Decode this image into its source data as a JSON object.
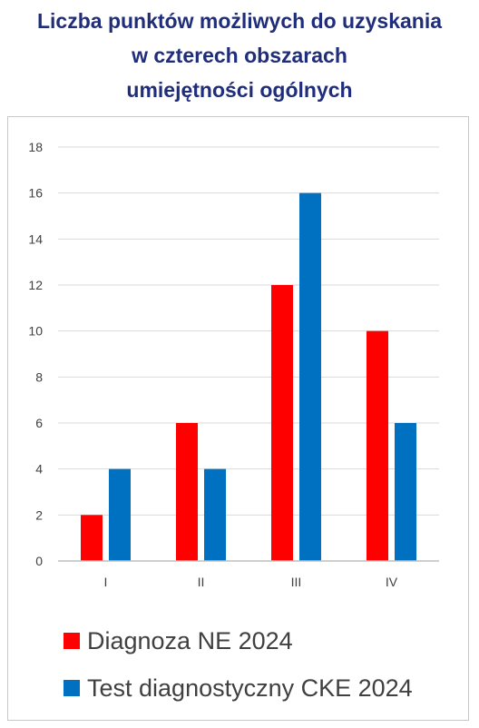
{
  "title_lines": [
    "Liczba punktów możliwych do uzyskania",
    "w czterech obszarach",
    "umiejętności ogólnych"
  ],
  "colors": {
    "title": "#1f2d7a",
    "series_1": "#ff0000",
    "series_2": "#0070c0",
    "grid": "#d9d9d9",
    "axis_text": "#404040"
  },
  "chart_data": {
    "type": "bar",
    "title": "Liczba punktów możliwych do uzyskania w czterech obszarach umiejętności ogólnych",
    "categories": [
      "I",
      "II",
      "III",
      "IV"
    ],
    "series": [
      {
        "name": "Diagnoza NE 2024",
        "values": [
          2,
          6,
          12,
          10
        ],
        "color": "#ff0000"
      },
      {
        "name": "Test diagnostyczny CKE 2024",
        "values": [
          4,
          4,
          16,
          6
        ],
        "color": "#0070c0"
      }
    ],
    "xlabel": "",
    "ylabel": "",
    "ylim": [
      0,
      18
    ],
    "yticks": [
      "0",
      "2",
      "4",
      "6",
      "8",
      "10",
      "12",
      "14",
      "16",
      "18"
    ],
    "grid": true,
    "legend_position": "bottom"
  }
}
